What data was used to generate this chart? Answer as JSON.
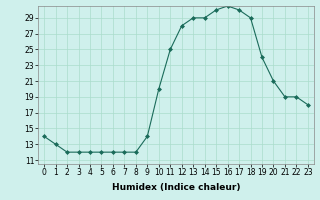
{
  "x": [
    0,
    1,
    2,
    3,
    4,
    5,
    6,
    7,
    8,
    9,
    10,
    11,
    12,
    13,
    14,
    15,
    16,
    17,
    18,
    19,
    20,
    21,
    22,
    23
  ],
  "y": [
    14,
    13,
    12,
    12,
    12,
    12,
    12,
    12,
    12,
    14,
    20,
    25,
    28,
    29,
    29,
    30,
    30.5,
    30,
    29,
    24,
    21,
    19,
    19,
    18
  ],
  "line_color": "#1a6b5a",
  "marker": "D",
  "marker_size": 2,
  "bg_color": "#cff0ec",
  "grid_color": "#aaddcc",
  "xlabel": "Humidex (Indice chaleur)",
  "xlim": [
    -0.5,
    23.5
  ],
  "ylim": [
    10.5,
    30.5
  ],
  "yticks": [
    11,
    13,
    15,
    17,
    19,
    21,
    23,
    25,
    27,
    29
  ],
  "xtick_labels": [
    "0",
    "1",
    "2",
    "3",
    "4",
    "5",
    "6",
    "7",
    "8",
    "9",
    "10",
    "11",
    "12",
    "13",
    "14",
    "15",
    "16",
    "17",
    "18",
    "19",
    "20",
    "21",
    "22",
    "23"
  ],
  "label_fontsize": 6.5,
  "tick_fontsize": 5.5
}
